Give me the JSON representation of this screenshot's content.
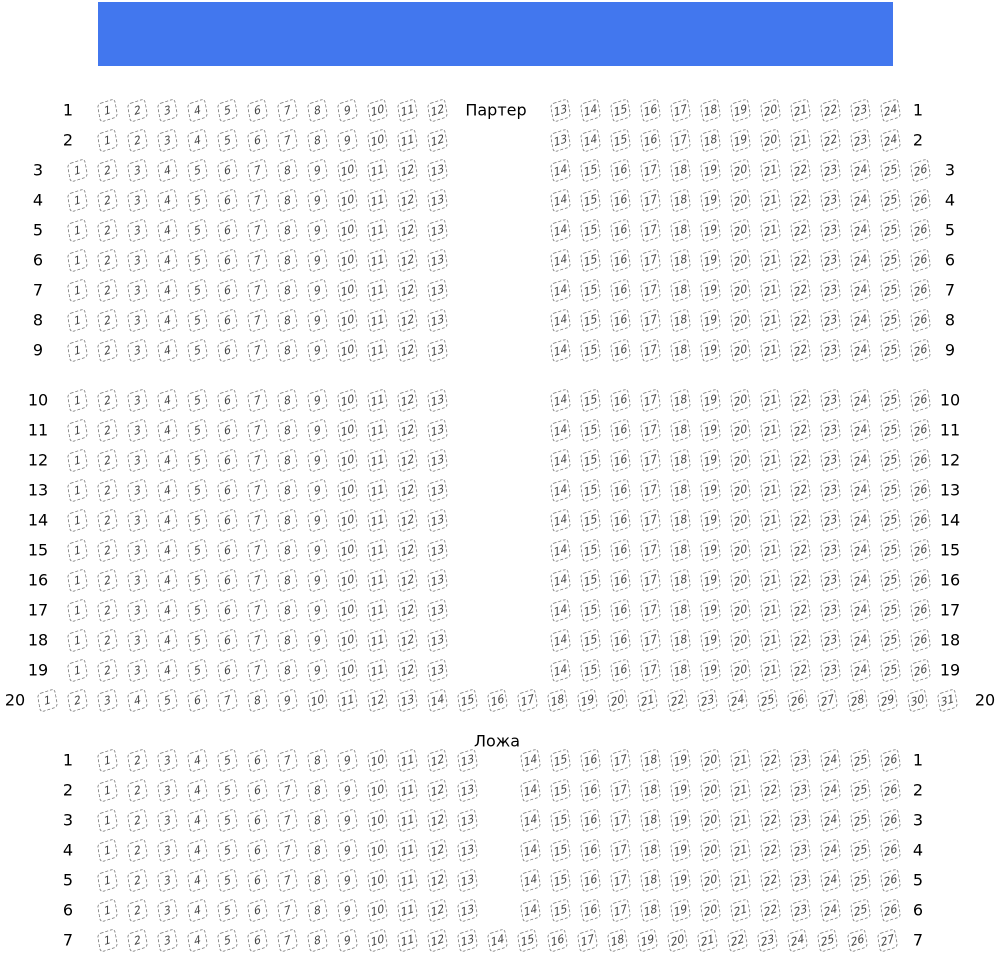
{
  "screen": {
    "color": "#4277ee"
  },
  "sections": [
    {
      "title": "Партер",
      "rows": [
        {
          "label": "1",
          "seats": [
            [
              1,
              12
            ],
            [
              13,
              24
            ]
          ]
        },
        {
          "label": "2",
          "seats": [
            [
              1,
              12
            ],
            [
              13,
              24
            ]
          ]
        },
        {
          "label": "3",
          "seats": [
            [
              1,
              13
            ],
            [
              14,
              26
            ]
          ]
        },
        {
          "label": "4",
          "seats": [
            [
              1,
              13
            ],
            [
              14,
              26
            ]
          ]
        },
        {
          "label": "5",
          "seats": [
            [
              1,
              13
            ],
            [
              14,
              26
            ]
          ]
        },
        {
          "label": "6",
          "seats": [
            [
              1,
              13
            ],
            [
              14,
              26
            ]
          ]
        },
        {
          "label": "7",
          "seats": [
            [
              1,
              13
            ],
            [
              14,
              26
            ]
          ]
        },
        {
          "label": "8",
          "seats": [
            [
              1,
              13
            ],
            [
              14,
              26
            ]
          ]
        },
        {
          "label": "9",
          "seats": [
            [
              1,
              13
            ],
            [
              14,
              26
            ]
          ]
        },
        {
          "label": "10",
          "seats": [
            [
              1,
              13
            ],
            [
              14,
              26
            ]
          ]
        },
        {
          "label": "11",
          "seats": [
            [
              1,
              13
            ],
            [
              14,
              26
            ]
          ]
        },
        {
          "label": "12",
          "seats": [
            [
              1,
              13
            ],
            [
              14,
              26
            ]
          ]
        },
        {
          "label": "13",
          "seats": [
            [
              1,
              13
            ],
            [
              14,
              26
            ]
          ]
        },
        {
          "label": "14",
          "seats": [
            [
              1,
              13
            ],
            [
              14,
              26
            ]
          ]
        },
        {
          "label": "15",
          "seats": [
            [
              1,
              13
            ],
            [
              14,
              26
            ]
          ]
        },
        {
          "label": "16",
          "seats": [
            [
              1,
              13
            ],
            [
              14,
              26
            ]
          ]
        },
        {
          "label": "17",
          "seats": [
            [
              1,
              13
            ],
            [
              14,
              26
            ]
          ]
        },
        {
          "label": "18",
          "seats": [
            [
              1,
              13
            ],
            [
              14,
              26
            ]
          ]
        },
        {
          "label": "19",
          "seats": [
            [
              1,
              13
            ],
            [
              14,
              26
            ]
          ]
        },
        {
          "label": "20",
          "seats": [
            [
              1,
              31
            ]
          ]
        }
      ]
    },
    {
      "title": "Ложа",
      "rows": [
        {
          "label": "1",
          "seats": [
            [
              1,
              13
            ],
            [
              14,
              26
            ]
          ]
        },
        {
          "label": "2",
          "seats": [
            [
              1,
              13
            ],
            [
              14,
              26
            ]
          ]
        },
        {
          "label": "3",
          "seats": [
            [
              1,
              13
            ],
            [
              14,
              26
            ]
          ]
        },
        {
          "label": "4",
          "seats": [
            [
              1,
              13
            ],
            [
              14,
              26
            ]
          ]
        },
        {
          "label": "5",
          "seats": [
            [
              1,
              13
            ],
            [
              14,
              26
            ]
          ]
        },
        {
          "label": "6",
          "seats": [
            [
              1,
              13
            ],
            [
              14,
              26
            ]
          ]
        },
        {
          "label": "7",
          "seats": [
            [
              1,
              27
            ]
          ]
        }
      ]
    }
  ]
}
